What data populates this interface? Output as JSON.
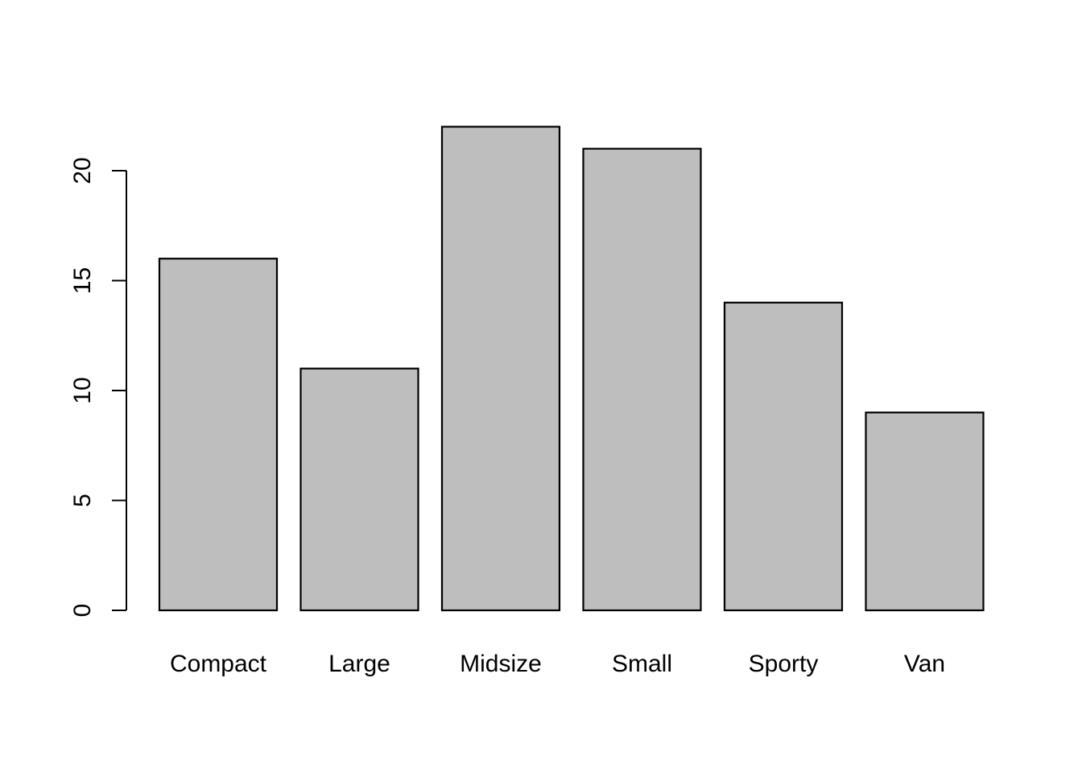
{
  "chart_data": {
    "type": "bar",
    "categories": [
      "Compact",
      "Large",
      "Midsize",
      "Small",
      "Sporty",
      "Van"
    ],
    "values": [
      16,
      11,
      22,
      21,
      14,
      9
    ],
    "title": "",
    "xlabel": "",
    "ylabel": "",
    "ylim": [
      0,
      22
    ],
    "yticks": [
      0,
      5,
      10,
      15,
      20
    ],
    "grid": false,
    "legend": "none",
    "colors": {
      "bar_fill": "#bebebe",
      "bar_stroke": "#000000",
      "background": "#ffffff"
    }
  }
}
